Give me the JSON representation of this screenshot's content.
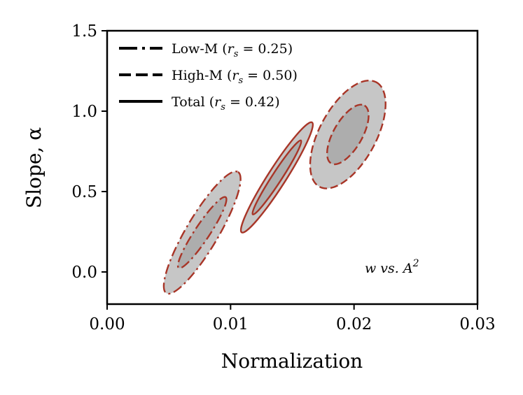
{
  "chart_data": {
    "type": "contour",
    "title": "",
    "xlabel": "Normalization",
    "ylabel": "Slope, α",
    "xlim": [
      0.0,
      0.03
    ],
    "ylim": [
      -0.2,
      1.5
    ],
    "xticks": [
      0.0,
      0.01,
      0.02,
      0.03
    ],
    "xtick_labels": [
      "0.00",
      "0.01",
      "0.02",
      "0.03"
    ],
    "yticks": [
      0.0,
      0.5,
      1.0,
      1.5
    ],
    "ytick_labels": [
      "0.0",
      "0.5",
      "1.0",
      "1.5"
    ],
    "annotation": {
      "text": "w vs. A",
      "superscript": "2"
    },
    "legend": {
      "location": "upper left",
      "entries": [
        {
          "name": "Low-M",
          "rs_label": "r",
          "rs_sub": "s",
          "rs_value": "= 0.25",
          "style": "dashdot"
        },
        {
          "name": "High-M",
          "rs_label": "r",
          "rs_sub": "s",
          "rs_value": "= 0.50",
          "style": "dashed"
        },
        {
          "name": "Total",
          "rs_label": "r",
          "rs_sub": "s",
          "rs_value": "= 0.42",
          "style": "solid"
        }
      ]
    },
    "colors": {
      "outer_fill": "#c6c6c6",
      "inner_fill": "#adadad",
      "line": "#a83527"
    },
    "series": [
      {
        "name": "Low-M",
        "style": "dashdot",
        "center": [
          0.0077,
          0.245
        ],
        "contours": [
          {
            "level": "outer",
            "major_end": [
              0.0106,
              0.622
            ],
            "minor_end": [
              0.0064,
              0.255
            ]
          },
          {
            "level": "inner",
            "major_end": [
              0.0096,
              0.465
            ],
            "minor_end": [
              0.0071,
              0.25
            ]
          }
        ]
      },
      {
        "name": "Total",
        "style": "solid",
        "center": [
          0.01375,
          0.588
        ],
        "contours": [
          {
            "level": "outer",
            "major_end": [
              0.0166,
              0.93
            ],
            "minor_end": [
              0.0132,
              0.625
            ]
          },
          {
            "level": "inner",
            "major_end": [
              0.0157,
              0.818
            ],
            "minor_end": [
              0.01348,
              0.61
            ]
          }
        ]
      },
      {
        "name": "High-M",
        "style": "dashed",
        "center": [
          0.0195,
          0.855
        ],
        "contours": [
          {
            "level": "outer",
            "major_end": [
              0.0218,
              1.18
            ],
            "minor_end": [
              0.0174,
              0.925
            ]
          },
          {
            "level": "inner",
            "major_end": [
              0.02085,
              1.035
            ],
            "minor_end": [
              0.01845,
              0.893
            ]
          }
        ]
      }
    ]
  }
}
